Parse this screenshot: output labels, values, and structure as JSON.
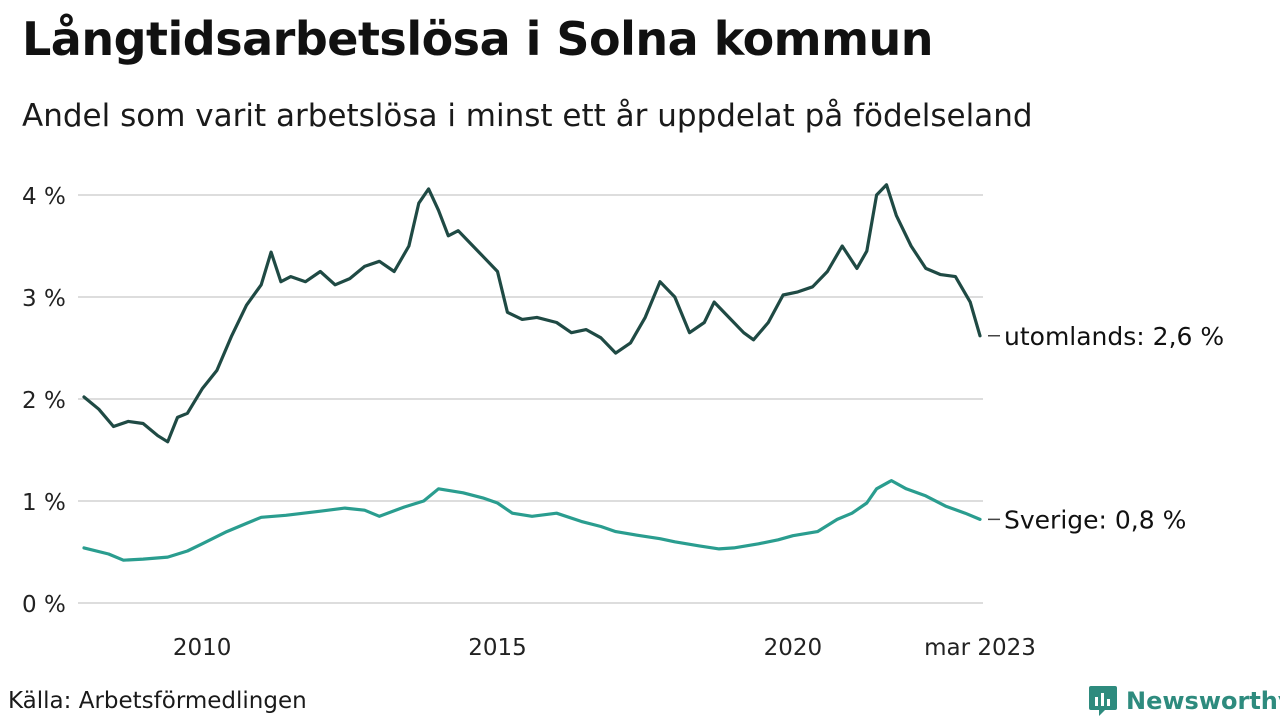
{
  "header": {
    "title": "Långtidsarbetslösa i Solna kommun",
    "subtitle": "Andel som varit arbetslösa i minst ett år uppdelat på födelseland"
  },
  "footer": {
    "source": "Källa: Arbetsförmedlingen",
    "brand": "Newsworthy",
    "brand_icon": "newsworthy-logo-icon"
  },
  "colors": {
    "utomlands": "#1f4a44",
    "sverige": "#2a9d8f",
    "grid": "#dddddd",
    "brand": "#2e8b7e"
  },
  "chart_data": {
    "type": "line",
    "title": "Långtidsarbetslösa i Solna kommun",
    "subtitle": "Andel som varit arbetslösa i minst ett år uppdelat på födelseland",
    "ylabel": "",
    "xlabel": "",
    "ylim": [
      0,
      4
    ],
    "xlim": [
      "2008-01",
      "2023-03"
    ],
    "yticks": [
      0,
      1,
      2,
      3,
      4
    ],
    "ytick_labels": [
      "0 %",
      "1 %",
      "2 %",
      "3 %",
      "4 %"
    ],
    "xticks": [
      "2010-01",
      "2015-01",
      "2020-01",
      "2023-03"
    ],
    "xtick_labels": [
      "2010",
      "2015",
      "2020",
      "mar 2023"
    ],
    "grid": true,
    "series": [
      {
        "key": "utomlands",
        "end_label": "utomlands: 2,6 %",
        "points": [
          [
            "2008-01",
            2.02
          ],
          [
            "2008-04",
            1.9
          ],
          [
            "2008-07",
            1.73
          ],
          [
            "2008-10",
            1.78
          ],
          [
            "2009-01",
            1.76
          ],
          [
            "2009-04",
            1.64
          ],
          [
            "2009-06",
            1.58
          ],
          [
            "2009-08",
            1.82
          ],
          [
            "2009-10",
            1.86
          ],
          [
            "2010-01",
            2.1
          ],
          [
            "2010-04",
            2.28
          ],
          [
            "2010-07",
            2.62
          ],
          [
            "2010-10",
            2.92
          ],
          [
            "2011-01",
            3.12
          ],
          [
            "2011-03",
            3.44
          ],
          [
            "2011-05",
            3.15
          ],
          [
            "2011-07",
            3.2
          ],
          [
            "2011-10",
            3.15
          ],
          [
            "2012-01",
            3.25
          ],
          [
            "2012-04",
            3.12
          ],
          [
            "2012-07",
            3.18
          ],
          [
            "2012-10",
            3.3
          ],
          [
            "2013-01",
            3.35
          ],
          [
            "2013-04",
            3.25
          ],
          [
            "2013-07",
            3.5
          ],
          [
            "2013-09",
            3.92
          ],
          [
            "2013-11",
            4.06
          ],
          [
            "2014-01",
            3.85
          ],
          [
            "2014-03",
            3.6
          ],
          [
            "2014-05",
            3.65
          ],
          [
            "2014-07",
            3.55
          ],
          [
            "2014-10",
            3.4
          ],
          [
            "2015-01",
            3.25
          ],
          [
            "2015-03",
            2.85
          ],
          [
            "2015-06",
            2.78
          ],
          [
            "2015-09",
            2.8
          ],
          [
            "2016-01",
            2.75
          ],
          [
            "2016-04",
            2.65
          ],
          [
            "2016-07",
            2.68
          ],
          [
            "2016-10",
            2.6
          ],
          [
            "2017-01",
            2.45
          ],
          [
            "2017-04",
            2.55
          ],
          [
            "2017-07",
            2.8
          ],
          [
            "2017-10",
            3.15
          ],
          [
            "2018-01",
            3.0
          ],
          [
            "2018-04",
            2.65
          ],
          [
            "2018-07",
            2.75
          ],
          [
            "2018-09",
            2.95
          ],
          [
            "2018-12",
            2.8
          ],
          [
            "2019-03",
            2.65
          ],
          [
            "2019-05",
            2.58
          ],
          [
            "2019-08",
            2.75
          ],
          [
            "2019-11",
            3.02
          ],
          [
            "2020-02",
            3.05
          ],
          [
            "2020-05",
            3.1
          ],
          [
            "2020-08",
            3.25
          ],
          [
            "2020-11",
            3.5
          ],
          [
            "2021-02",
            3.28
          ],
          [
            "2021-04",
            3.45
          ],
          [
            "2021-06",
            4.0
          ],
          [
            "2021-08",
            4.1
          ],
          [
            "2021-10",
            3.8
          ],
          [
            "2022-01",
            3.5
          ],
          [
            "2022-04",
            3.28
          ],
          [
            "2022-07",
            3.22
          ],
          [
            "2022-10",
            3.2
          ],
          [
            "2023-01",
            2.95
          ],
          [
            "2023-03",
            2.62
          ]
        ]
      },
      {
        "key": "sverige",
        "end_label": "Sverige: 0,8 %",
        "points": [
          [
            "2008-01",
            0.54
          ],
          [
            "2008-06",
            0.48
          ],
          [
            "2008-09",
            0.42
          ],
          [
            "2009-01",
            0.43
          ],
          [
            "2009-06",
            0.45
          ],
          [
            "2009-10",
            0.51
          ],
          [
            "2010-01",
            0.58
          ],
          [
            "2010-06",
            0.7
          ],
          [
            "2010-10",
            0.78
          ],
          [
            "2011-01",
            0.84
          ],
          [
            "2011-06",
            0.86
          ],
          [
            "2012-01",
            0.9
          ],
          [
            "2012-06",
            0.93
          ],
          [
            "2012-10",
            0.91
          ],
          [
            "2013-01",
            0.85
          ],
          [
            "2013-06",
            0.94
          ],
          [
            "2013-10",
            1.0
          ],
          [
            "2014-01",
            1.12
          ],
          [
            "2014-06",
            1.08
          ],
          [
            "2014-10",
            1.03
          ],
          [
            "2015-01",
            0.98
          ],
          [
            "2015-04",
            0.88
          ],
          [
            "2015-08",
            0.85
          ],
          [
            "2016-01",
            0.88
          ],
          [
            "2016-06",
            0.8
          ],
          [
            "2016-10",
            0.75
          ],
          [
            "2017-01",
            0.7
          ],
          [
            "2017-06",
            0.66
          ],
          [
            "2017-10",
            0.63
          ],
          [
            "2018-01",
            0.6
          ],
          [
            "2018-06",
            0.56
          ],
          [
            "2018-10",
            0.53
          ],
          [
            "2019-01",
            0.54
          ],
          [
            "2019-06",
            0.58
          ],
          [
            "2019-10",
            0.62
          ],
          [
            "2020-01",
            0.66
          ],
          [
            "2020-06",
            0.7
          ],
          [
            "2020-10",
            0.82
          ],
          [
            "2021-01",
            0.88
          ],
          [
            "2021-04",
            0.98
          ],
          [
            "2021-06",
            1.12
          ],
          [
            "2021-09",
            1.2
          ],
          [
            "2021-12",
            1.12
          ],
          [
            "2022-04",
            1.05
          ],
          [
            "2022-08",
            0.95
          ],
          [
            "2022-12",
            0.88
          ],
          [
            "2023-03",
            0.82
          ]
        ]
      }
    ]
  }
}
